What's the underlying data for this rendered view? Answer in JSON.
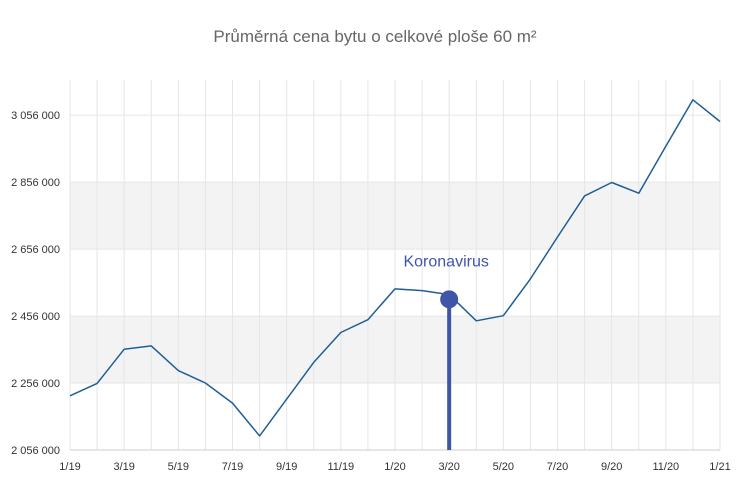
{
  "chart_data": {
    "type": "line",
    "title": "Průměrná cena bytu o celkové ploše 60 m²",
    "xlabel": "",
    "ylabel": "",
    "x_tick_labels": [
      "1/19",
      "3/19",
      "5/19",
      "7/19",
      "9/19",
      "11/19",
      "1/20",
      "3/20",
      "5/20",
      "7/20",
      "9/20",
      "11/20",
      "1/21"
    ],
    "y_tick_values": [
      2056000,
      2256000,
      2456000,
      2656000,
      2856000,
      3056000
    ],
    "y_tick_labels": [
      "2 056 000",
      "2 256 000",
      "2 456 000",
      "2 656 000",
      "2 856 000",
      "3 056 000"
    ],
    "ylim": [
      2056000,
      3161000
    ],
    "grid": true,
    "legend": "none",
    "series": [
      {
        "values": [
          2218000,
          2255000,
          2357000,
          2367000,
          2293000,
          2256000,
          2196000,
          2098000,
          2208000,
          2318000,
          2407000,
          2445000,
          2537000,
          2532000,
          2520000,
          2442000,
          2457000,
          2567000,
          2692000,
          2815000,
          2855000,
          2823000,
          2963000,
          3102000,
          3037000
        ],
        "color": "#1f5f96"
      }
    ],
    "annotation": {
      "label": "Koronavirus",
      "x_index": 14,
      "y_value": 2506000,
      "color": "#3f56a8"
    }
  }
}
